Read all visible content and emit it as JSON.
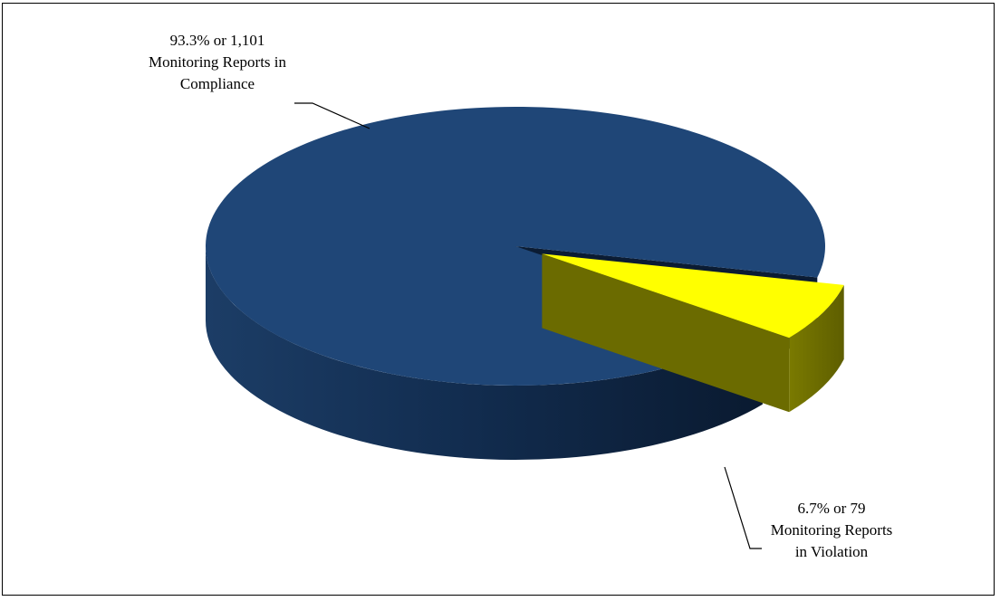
{
  "chart_data": {
    "type": "pie",
    "title": "",
    "slices": [
      {
        "label_lines": [
          "93.3% or 1,101",
          "Monitoring Reports in",
          "Compliance"
        ],
        "percent": 93.3,
        "count": 1101,
        "color": "#1F4677",
        "exploded": false
      },
      {
        "label_lines": [
          "6.7% or 79",
          "Monitoring Reports",
          "in Violation"
        ],
        "percent": 6.7,
        "count": 79,
        "color": "#FFFF00",
        "exploded": true
      }
    ],
    "legend": "none",
    "style": "3d"
  },
  "colors": {
    "compliance_top": "#1F4677",
    "compliance_side_dark": "#0E2442",
    "violation_top": "#FFFF00",
    "violation_side": "#6E6E00"
  }
}
